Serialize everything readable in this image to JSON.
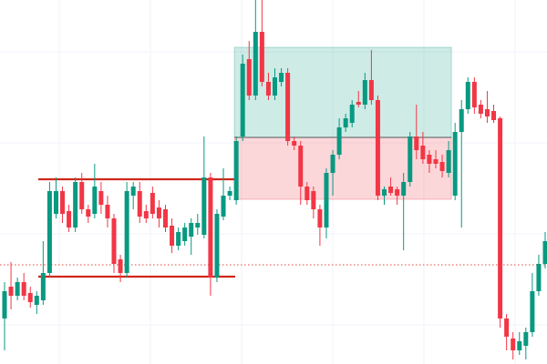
{
  "chart_data": {
    "type": "candlestick",
    "ylim": [
      0,
      400
    ],
    "up_color": "#089981",
    "down_color": "#f23645",
    "open": [
      50,
      85,
      75,
      90,
      78,
      65,
      70,
      100,
      165,
      190,
      168,
      150,
      200,
      170,
      165,
      190,
      175,
      160,
      115,
      100,
      185,
      190,
      168,
      188,
      172,
      170,
      152,
      130,
      135,
      140,
      150,
      142,
      205,
      95,
      162,
      185,
      180,
      250,
      335,
      295,
      365,
      310,
      295,
      310,
      320,
      245,
      240,
      195,
      190,
      170,
      150,
      210,
      230,
      260,
      265,
      288,
      285,
      312,
      290,
      185,
      195,
      192,
      185,
      200,
      250,
      240,
      230,
      225,
      222,
      210,
      185,
      255,
      280,
      310,
      285,
      280,
      278,
      270,
      50,
      28,
      15,
      20,
      35,
      80,
      110
    ],
    "high": [
      90,
      112,
      95,
      100,
      85,
      80,
      135,
      200,
      205,
      195,
      175,
      205,
      210,
      175,
      220,
      200,
      185,
      165,
      120,
      200,
      200,
      200,
      175,
      195,
      180,
      175,
      160,
      150,
      155,
      160,
      165,
      250,
      210,
      170,
      215,
      195,
      250,
      340,
      355,
      400,
      400,
      320,
      325,
      325,
      325,
      250,
      245,
      200,
      195,
      175,
      215,
      235,
      270,
      275,
      290,
      300,
      320,
      345,
      295,
      195,
      205,
      195,
      210,
      255,
      285,
      255,
      235,
      235,
      230,
      245,
      265,
      290,
      315,
      315,
      290,
      300,
      285,
      272,
      55,
      35,
      35,
      40,
      100,
      120,
      145
    ],
    "low": [
      15,
      60,
      70,
      70,
      62,
      55,
      65,
      95,
      160,
      155,
      145,
      145,
      165,
      155,
      160,
      165,
      150,
      100,
      90,
      95,
      170,
      155,
      155,
      160,
      150,
      145,
      122,
      125,
      130,
      120,
      142,
      138,
      75,
      90,
      158,
      180,
      175,
      245,
      290,
      290,
      305,
      290,
      290,
      305,
      240,
      235,
      175,
      175,
      160,
      130,
      138,
      185,
      225,
      255,
      260,
      282,
      280,
      285,
      180,
      175,
      185,
      175,
      125,
      195,
      225,
      220,
      210,
      215,
      205,
      205,
      180,
      150,
      275,
      275,
      270,
      265,
      265,
      40,
      15,
      5,
      10,
      5,
      30,
      75,
      105
    ],
    "close": [
      80,
      75,
      90,
      75,
      68,
      75,
      100,
      190,
      190,
      165,
      150,
      200,
      170,
      162,
      195,
      175,
      160,
      110,
      100,
      190,
      195,
      162,
      160,
      165,
      160,
      150,
      130,
      145,
      150,
      155,
      155,
      205,
      95,
      165,
      185,
      190,
      245,
      330,
      295,
      365,
      310,
      295,
      315,
      320,
      245,
      240,
      195,
      180,
      170,
      150,
      210,
      230,
      260,
      270,
      285,
      285,
      312,
      290,
      185,
      192,
      188,
      185,
      200,
      250,
      235,
      225,
      220,
      220,
      212,
      235,
      255,
      280,
      310,
      282,
      275,
      272,
      268,
      50,
      30,
      15,
      25,
      35,
      80,
      110,
      135
    ],
    "levels": [
      {
        "value": 203,
        "color": "#d1271b",
        "style": "solid"
      },
      {
        "value": 96,
        "color": "#d1271b",
        "style": "solid"
      },
      {
        "value": 109,
        "color": "#e0473d",
        "style": "dotted"
      }
    ],
    "position": {
      "target": 348,
      "entry": 249,
      "stop": 181,
      "profit_color": "#089981",
      "loss_color": "#f23645"
    }
  }
}
